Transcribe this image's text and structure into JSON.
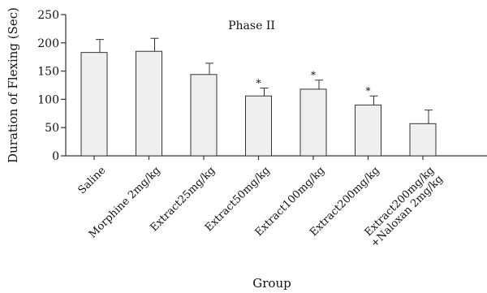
{
  "chart_data": {
    "type": "bar",
    "title": "Phase II",
    "xlabel": "Group",
    "ylabel": "Duration of Flexing (Sec)",
    "ylim": [
      0,
      250
    ],
    "yticks": [
      0,
      50,
      100,
      150,
      200,
      250
    ],
    "categories": [
      [
        "Saline"
      ],
      [
        "Morphine 2mg/kg"
      ],
      [
        "Extract25mg/kg"
      ],
      [
        "Extract50mg/kg"
      ],
      [
        "Extract100mg/kg"
      ],
      [
        "Extract200mg/kg"
      ],
      [
        "Extract200mg/kg",
        "+Naloxan 2mg/kg"
      ]
    ],
    "values": [
      183,
      185,
      144,
      106,
      118,
      90,
      57
    ],
    "errors": [
      23,
      23,
      20,
      14,
      16,
      16,
      24
    ],
    "annotations": [
      "",
      "",
      "",
      "*",
      "*",
      "*",
      ""
    ],
    "grid": false
  }
}
